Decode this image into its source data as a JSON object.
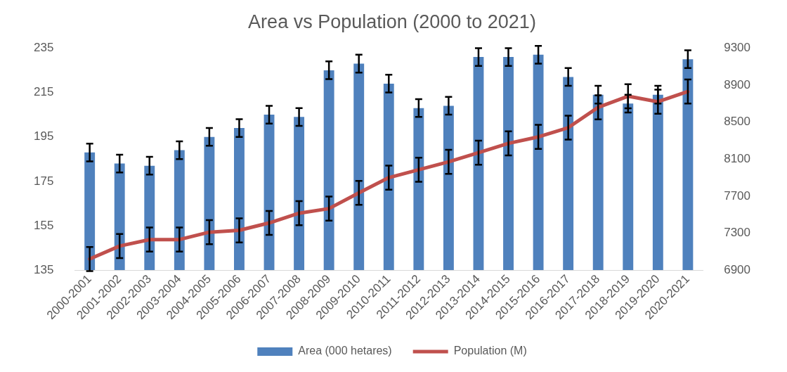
{
  "chart_data": {
    "type": "bar",
    "title": "Area vs Population (2000 to 2021)",
    "categories": [
      "2000-2001",
      "2001-2002",
      "2002-2003",
      "2003-2004",
      "2004-2005",
      "2005-2006",
      "2006-2007",
      "2007-2008",
      "2008-2009",
      "2009-2010",
      "2010-2011",
      "2011-2012",
      "2012-2013",
      "2013-2014",
      "2014-2015",
      "2015-2016",
      "2016-2017",
      "2017-2018",
      "2018-2019",
      "2019-2020",
      "2020-2021"
    ],
    "series": [
      {
        "name": "Area (000 hetares)",
        "color": "#4f81bd",
        "values": [
          188,
          183,
          182,
          189,
          195,
          199,
          205,
          204,
          225,
          228,
          219,
          208,
          209,
          231,
          231,
          232,
          222,
          214,
          210,
          214,
          230
        ],
        "errors": [
          4,
          4,
          4,
          4,
          4,
          4,
          4,
          4,
          4,
          4,
          4,
          4,
          4,
          4,
          4,
          4,
          4,
          4,
          4,
          4,
          4
        ]
      },
      {
        "name": "Population (M)",
        "type": "line",
        "axis": "y2",
        "color": "#c0504d",
        "values": [
          7020,
          7160,
          7230,
          7230,
          7310,
          7330,
          7410,
          7515,
          7565,
          7735,
          7900,
          7985,
          8070,
          8170,
          8270,
          8340,
          8440,
          8660,
          8780,
          8720,
          8830
        ],
        "errors": [
          130,
          130,
          130,
          130,
          130,
          130,
          130,
          130,
          130,
          130,
          130,
          130,
          130,
          130,
          130,
          130,
          130,
          130,
          130,
          130,
          130
        ],
        "marker": "none"
      }
    ],
    "ylim": [
      135,
      235
    ],
    "yticks": [
      135,
      155,
      175,
      195,
      215,
      235
    ],
    "y2lim": [
      6900,
      9300
    ],
    "y2ticks": [
      6900,
      7300,
      7700,
      8100,
      8500,
      8900,
      9300
    ],
    "grid": false,
    "legend": "bottom"
  }
}
